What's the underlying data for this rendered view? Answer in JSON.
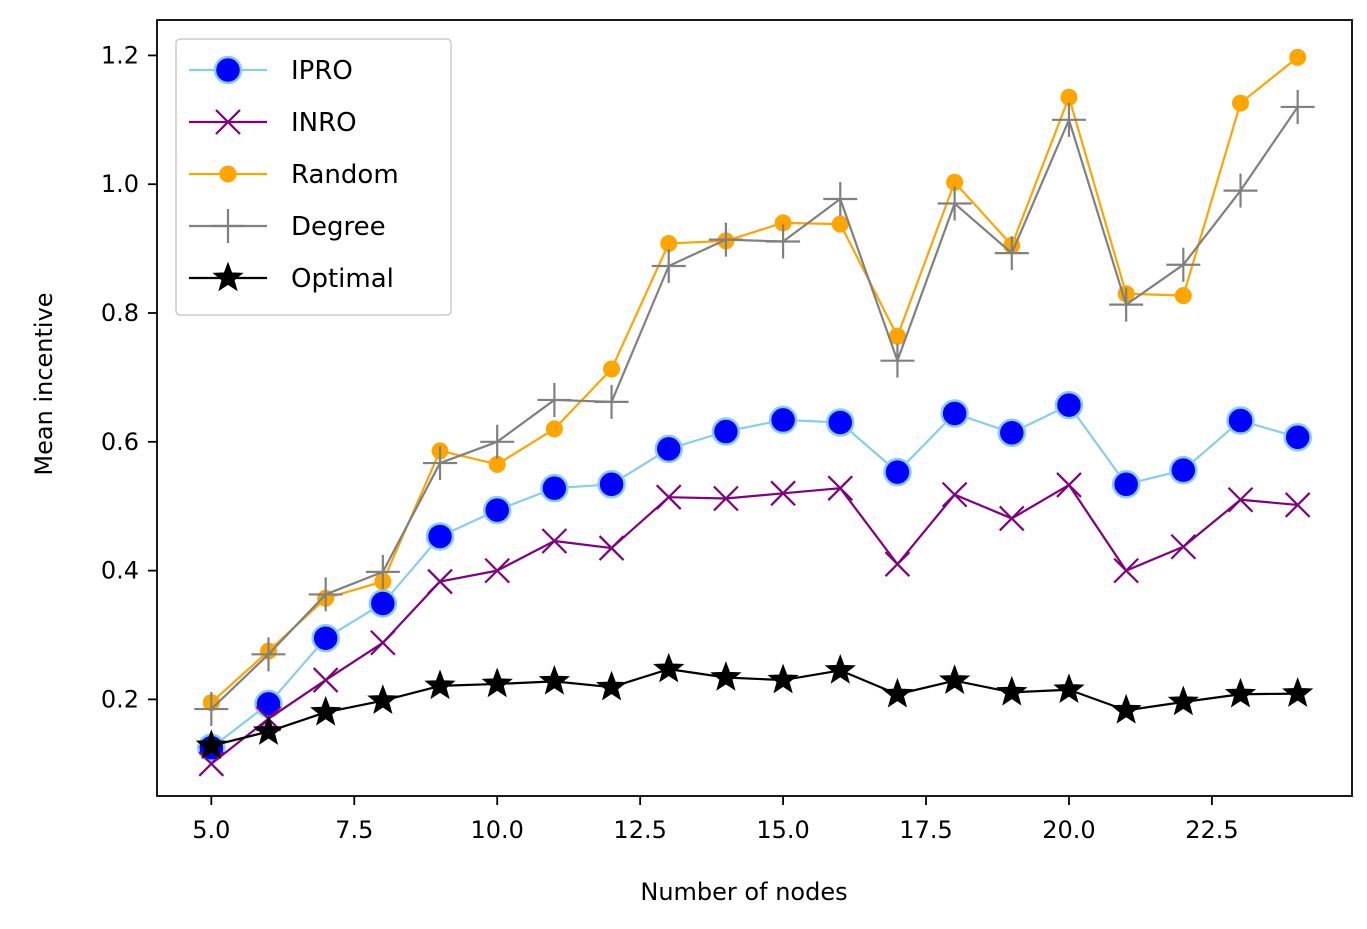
{
  "chart_data": {
    "type": "line",
    "title": "",
    "xlabel": "Number of nodes",
    "ylabel": "Mean incentive",
    "xlim": [
      4.05,
      24.95
    ],
    "ylim": [
      0.05,
      1.255
    ],
    "xticks": [
      5.0,
      7.5,
      10.0,
      12.5,
      15.0,
      17.5,
      20.0,
      22.5
    ],
    "xtick_labels": [
      "5.0",
      "7.5",
      "10.0",
      "12.5",
      "15.0",
      "17.5",
      "20.0",
      "22.5"
    ],
    "yticks": [
      0.2,
      0.4,
      0.6,
      0.8,
      1.0,
      1.2
    ],
    "ytick_labels": [
      "0.2",
      "0.4",
      "0.6",
      "0.8",
      "1.0",
      "1.2"
    ],
    "grid": false,
    "legend_position": "top-left",
    "x": [
      5,
      6,
      7,
      8,
      9,
      10,
      11,
      12,
      13,
      14,
      15,
      16,
      17,
      18,
      19,
      20,
      21,
      22,
      23,
      24
    ],
    "series": [
      {
        "name": "IPRO",
        "color": "#87ceeb",
        "marker": "circle",
        "marker_fill": "#0000ff",
        "values": [
          0.125,
          0.193,
          0.295,
          0.349,
          0.453,
          0.494,
          0.528,
          0.534,
          0.589,
          0.616,
          0.634,
          0.63,
          0.553,
          0.644,
          0.614,
          0.657,
          0.534,
          0.556,
          0.633,
          0.607
        ]
      },
      {
        "name": "INRO",
        "color": "#800080",
        "marker": "x",
        "values": [
          0.1,
          0.17,
          0.23,
          0.288,
          0.383,
          0.4,
          0.446,
          0.435,
          0.514,
          0.512,
          0.52,
          0.528,
          0.41,
          0.518,
          0.481,
          0.533,
          0.4,
          0.437,
          0.51,
          0.502
        ]
      },
      {
        "name": "Random",
        "color": "#ffa500",
        "marker": "dot",
        "values": [
          0.195,
          0.275,
          0.357,
          0.383,
          0.586,
          0.565,
          0.62,
          0.713,
          0.908,
          0.912,
          0.94,
          0.938,
          0.764,
          1.003,
          0.905,
          1.135,
          0.83,
          0.827,
          1.126,
          1.197
        ]
      },
      {
        "name": "Degree",
        "color": "#808080",
        "marker": "plus",
        "values": [
          0.185,
          0.27,
          0.363,
          0.398,
          0.567,
          0.6,
          0.665,
          0.662,
          0.873,
          0.914,
          0.911,
          0.977,
          0.726,
          0.97,
          0.893,
          1.1,
          0.813,
          0.875,
          0.99,
          1.12
        ]
      },
      {
        "name": "Optimal",
        "color": "#000000",
        "marker": "star",
        "values": [
          0.128,
          0.15,
          0.18,
          0.198,
          0.221,
          0.224,
          0.228,
          0.219,
          0.247,
          0.234,
          0.23,
          0.245,
          0.208,
          0.229,
          0.211,
          0.215,
          0.183,
          0.196,
          0.208,
          0.209
        ]
      }
    ]
  }
}
